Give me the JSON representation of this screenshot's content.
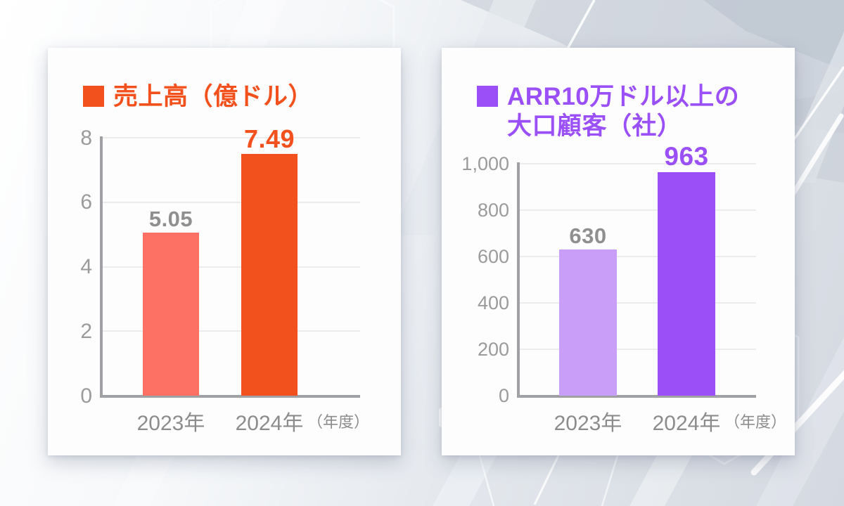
{
  "styles": {
    "axis_color": "#9fa1a4",
    "grid_color": "#ececec",
    "ytick_color": "#9b9b9b",
    "xlabel_color": "#8c8c8c",
    "card_bg": "#fdfdfe"
  },
  "chart_data": [
    {
      "type": "bar",
      "title": "売上高（億ドル）",
      "title_lines": [
        "売上高（億ドル）"
      ],
      "accent_color": "#f2511d",
      "categories": [
        "2023年",
        "2024年"
      ],
      "values": [
        5.05,
        7.49
      ],
      "value_labels": [
        "5.05",
        "7.49"
      ],
      "bar_colors": [
        "#fc7164",
        "#f2511d"
      ],
      "value_label_colors": [
        "#8f8f8f",
        "#f2511d"
      ],
      "x_unit_label": "（年度）",
      "ylim": [
        0,
        8
      ],
      "yticks": [
        0,
        2,
        4,
        6,
        8
      ],
      "ytick_labels": [
        "0",
        "2",
        "4",
        "6",
        "8"
      ],
      "grid": true,
      "legend_position": "top-left"
    },
    {
      "type": "bar",
      "title": "ARR10万ドル以上の大口顧客（社）",
      "title_lines": [
        "ARR10万ドル以上の",
        "大口顧客（社）"
      ],
      "accent_color": "#9b4ff7",
      "categories": [
        "2023年",
        "2024年"
      ],
      "values": [
        630,
        963
      ],
      "value_labels": [
        "630",
        "963"
      ],
      "bar_colors": [
        "#c89ef8",
        "#9b4ff7"
      ],
      "value_label_colors": [
        "#8f8f8f",
        "#9b4ff7"
      ],
      "x_unit_label": "（年度）",
      "ylim": [
        0,
        1000
      ],
      "yticks": [
        0,
        200,
        400,
        600,
        800,
        1000
      ],
      "ytick_labels": [
        "0",
        "200",
        "400",
        "600",
        "800",
        "1,000"
      ],
      "grid": true,
      "legend_position": "top-left"
    }
  ]
}
